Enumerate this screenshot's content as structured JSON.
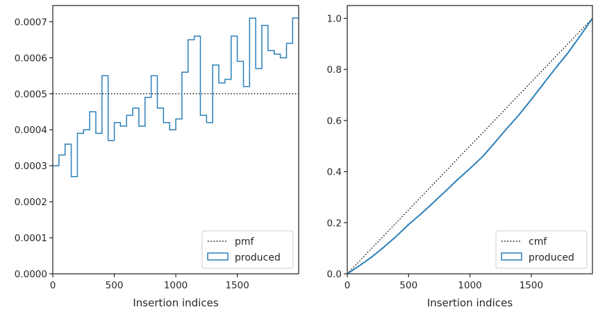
{
  "colors": {
    "series": "#2a7fb8",
    "reference": "#111111",
    "axes": "#262626",
    "legend_border": "#cccccc"
  },
  "chart_data": [
    {
      "type": "step",
      "xlabel": "Insertion indices",
      "ylabel": "",
      "xlim": [
        0,
        1999
      ],
      "ylim": [
        0,
        0.000745
      ],
      "xticks": [
        0,
        500,
        1000,
        1500
      ],
      "xtick_labels": [
        "0",
        "500",
        "1000",
        "1500"
      ],
      "yticks": [
        0,
        0.0001,
        0.0002,
        0.0003,
        0.0004,
        0.0005,
        0.0006,
        0.0007
      ],
      "ytick_labels": [
        "0.0000",
        "0.0001",
        "0.0002",
        "0.0003",
        "0.0004",
        "0.0005",
        "0.0006",
        "0.0007"
      ],
      "legend_position": "lower right",
      "reference": {
        "name": "pmf",
        "y": 0.0005,
        "style": "dotted"
      },
      "series": [
        {
          "name": "produced",
          "bin_width": 50,
          "bin_starts": [
            0,
            50,
            100,
            150,
            200,
            250,
            300,
            350,
            400,
            450,
            500,
            550,
            600,
            650,
            700,
            750,
            800,
            850,
            900,
            950,
            1000,
            1050,
            1100,
            1150,
            1200,
            1250,
            1300,
            1350,
            1400,
            1450,
            1500,
            1550,
            1600,
            1650,
            1700,
            1750,
            1800,
            1850,
            1900,
            1950
          ],
          "values": [
            0.0003,
            0.00033,
            0.00036,
            0.00027,
            0.00039,
            0.0004,
            0.00045,
            0.00039,
            0.00055,
            0.00037,
            0.00042,
            0.00041,
            0.00044,
            0.00046,
            0.00041,
            0.00049,
            0.00055,
            0.00046,
            0.00042,
            0.0004,
            0.00043,
            0.00056,
            0.00065,
            0.00066,
            0.00044,
            0.00042,
            0.00058,
            0.00053,
            0.00054,
            0.00066,
            0.00059,
            0.00052,
            0.00071,
            0.00057,
            0.00069,
            0.00062,
            0.00061,
            0.0006,
            0.00064,
            0.00071
          ]
        }
      ]
    },
    {
      "type": "line",
      "xlabel": "Insertion indices",
      "ylabel": "",
      "xlim": [
        0,
        1999
      ],
      "ylim": [
        0,
        1.05
      ],
      "xticks": [
        0,
        500,
        1000,
        1500
      ],
      "xtick_labels": [
        "0",
        "500",
        "1000",
        "1500"
      ],
      "yticks": [
        0,
        0.2,
        0.4,
        0.6,
        0.8,
        1.0
      ],
      "ytick_labels": [
        "0.0",
        "0.2",
        "0.4",
        "0.6",
        "0.8",
        "1.0"
      ],
      "legend_position": "lower right",
      "reference": {
        "name": "cmf",
        "points": [
          [
            0,
            0
          ],
          [
            1999,
            1.0
          ]
        ],
        "style": "dotted"
      },
      "series": [
        {
          "name": "produced",
          "x": [
            0,
            100,
            200,
            300,
            400,
            500,
            600,
            700,
            800,
            900,
            1000,
            1100,
            1200,
            1300,
            1400,
            1500,
            1600,
            1700,
            1800,
            1900,
            1999
          ],
          "y": [
            0,
            0.032,
            0.066,
            0.105,
            0.147,
            0.193,
            0.234,
            0.278,
            0.323,
            0.369,
            0.412,
            0.457,
            0.512,
            0.568,
            0.622,
            0.682,
            0.744,
            0.806,
            0.865,
            0.932,
            1.0
          ]
        }
      ]
    }
  ]
}
